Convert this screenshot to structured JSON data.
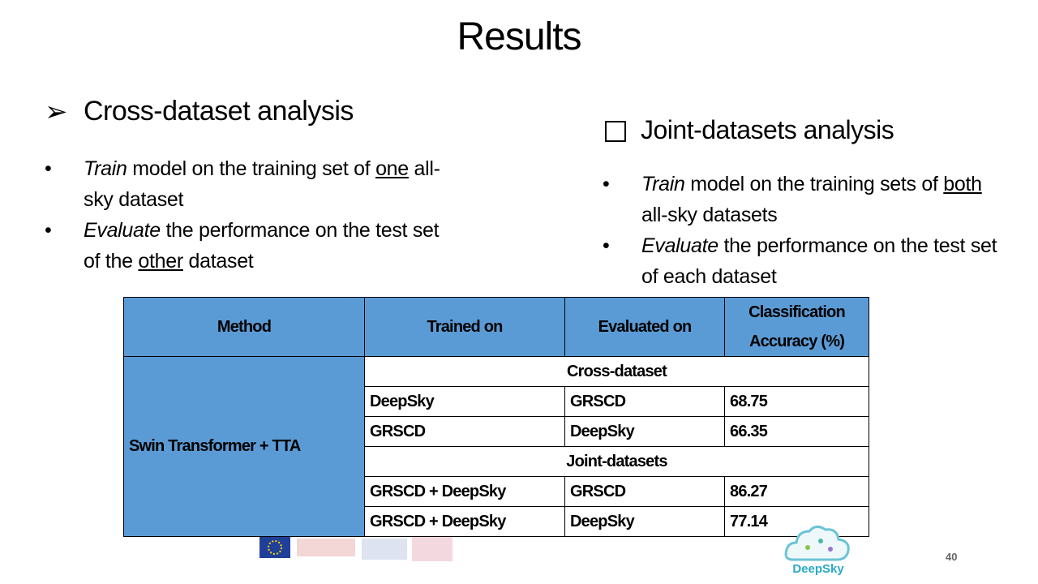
{
  "title": "Results",
  "left": {
    "heading": "Cross-dataset analysis",
    "bullets": [
      [
        "Train",
        " model on the training set of ",
        "one",
        " all-sky dataset"
      ],
      [
        "Evaluate",
        " the performance on the test set of the ",
        "other",
        " dataset"
      ]
    ]
  },
  "right": {
    "heading": "Joint-datasets analysis",
    "bullets": [
      [
        "Train",
        " model on the training sets of ",
        "both",
        " all-sky datasets"
      ],
      [
        "Evaluate",
        " the performance on the test set of each dataset"
      ]
    ]
  },
  "table": {
    "headers": [
      "Method",
      "Trained on",
      "Evaluated on",
      "Classification Accuracy (%)"
    ],
    "method": "Swin Transformer + TTA",
    "sections": [
      {
        "name": "Cross-dataset",
        "rows": [
          [
            "DeepSky",
            "GRSCD",
            "68.75"
          ],
          [
            "GRSCD",
            "DeepSky",
            "66.35"
          ]
        ]
      },
      {
        "name": "Joint-datasets",
        "rows": [
          [
            "GRSCD + DeepSky",
            "GRSCD",
            "86.27"
          ],
          [
            "GRSCD + DeepSky",
            "DeepSky",
            "77.14"
          ]
        ]
      }
    ]
  },
  "footer": {
    "logo": "DeepSky",
    "page_number": "40"
  }
}
